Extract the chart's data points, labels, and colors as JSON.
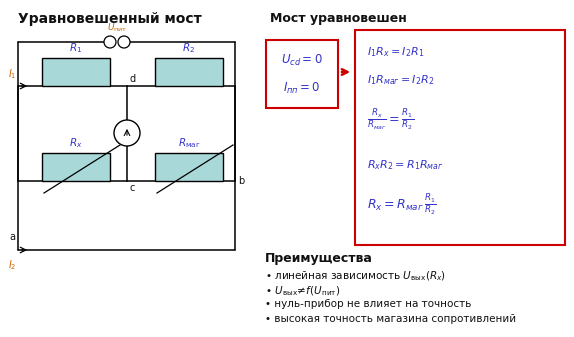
{
  "title_left": "Уравновешенный мост",
  "title_right": "Мост уравновешен",
  "bg_color": "#ffffff",
  "resistor_fill": "#a8d8d8",
  "red_stroke": "#cc0000",
  "blue": "#3333cc",
  "dark": "#111111",
  "orange": "#cc6600",
  "advantages_title": "Преимущества",
  "adv1": "линейная зависимость U",
  "adv2": "U",
  "adv3": "нуль-прибор не влияет на точность",
  "adv4": "высокая точность магазина сопротивлений"
}
